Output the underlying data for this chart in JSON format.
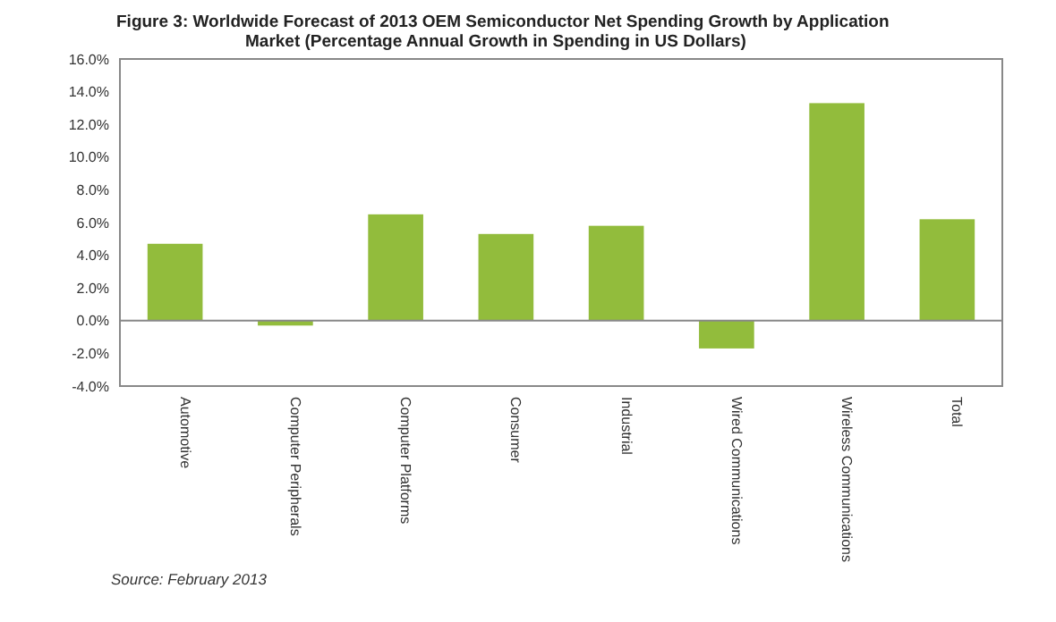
{
  "chart_data": {
    "type": "bar",
    "title": "Figure 3: Worldwide Forecast of 2013 OEM Semiconductor Net Spending Growth by Application\nMarket  (Percentage Annual Growth in Spending in US Dollars)",
    "categories": [
      "Automotive",
      "Computer Peripherals",
      "Computer Platforms",
      "Consumer",
      "Industrial",
      "Wired Communications",
      "Wireless Communications",
      "Total"
    ],
    "values": [
      4.7,
      -0.3,
      6.5,
      5.3,
      5.8,
      -1.7,
      13.3,
      6.2
    ],
    "color": "#92bc3c",
    "ylim": [
      -4,
      16
    ],
    "yticks": [
      {
        "value": -4,
        "label": "-4.0%"
      },
      {
        "value": -2,
        "label": "-2.0%"
      },
      {
        "value": 0,
        "label": "0.0%"
      },
      {
        "value": 2,
        "label": "2.0%"
      },
      {
        "value": 4,
        "label": "4.0%"
      },
      {
        "value": 6,
        "label": "6.0%"
      },
      {
        "value": 8,
        "label": "8.0%"
      },
      {
        "value": 10,
        "label": "10.0%"
      },
      {
        "value": 12,
        "label": "12.0%"
      },
      {
        "value": 14,
        "label": "14.0%"
      },
      {
        "value": 16,
        "label": "16.0%"
      }
    ],
    "annotations": [
      "Source: February 2013"
    ]
  }
}
